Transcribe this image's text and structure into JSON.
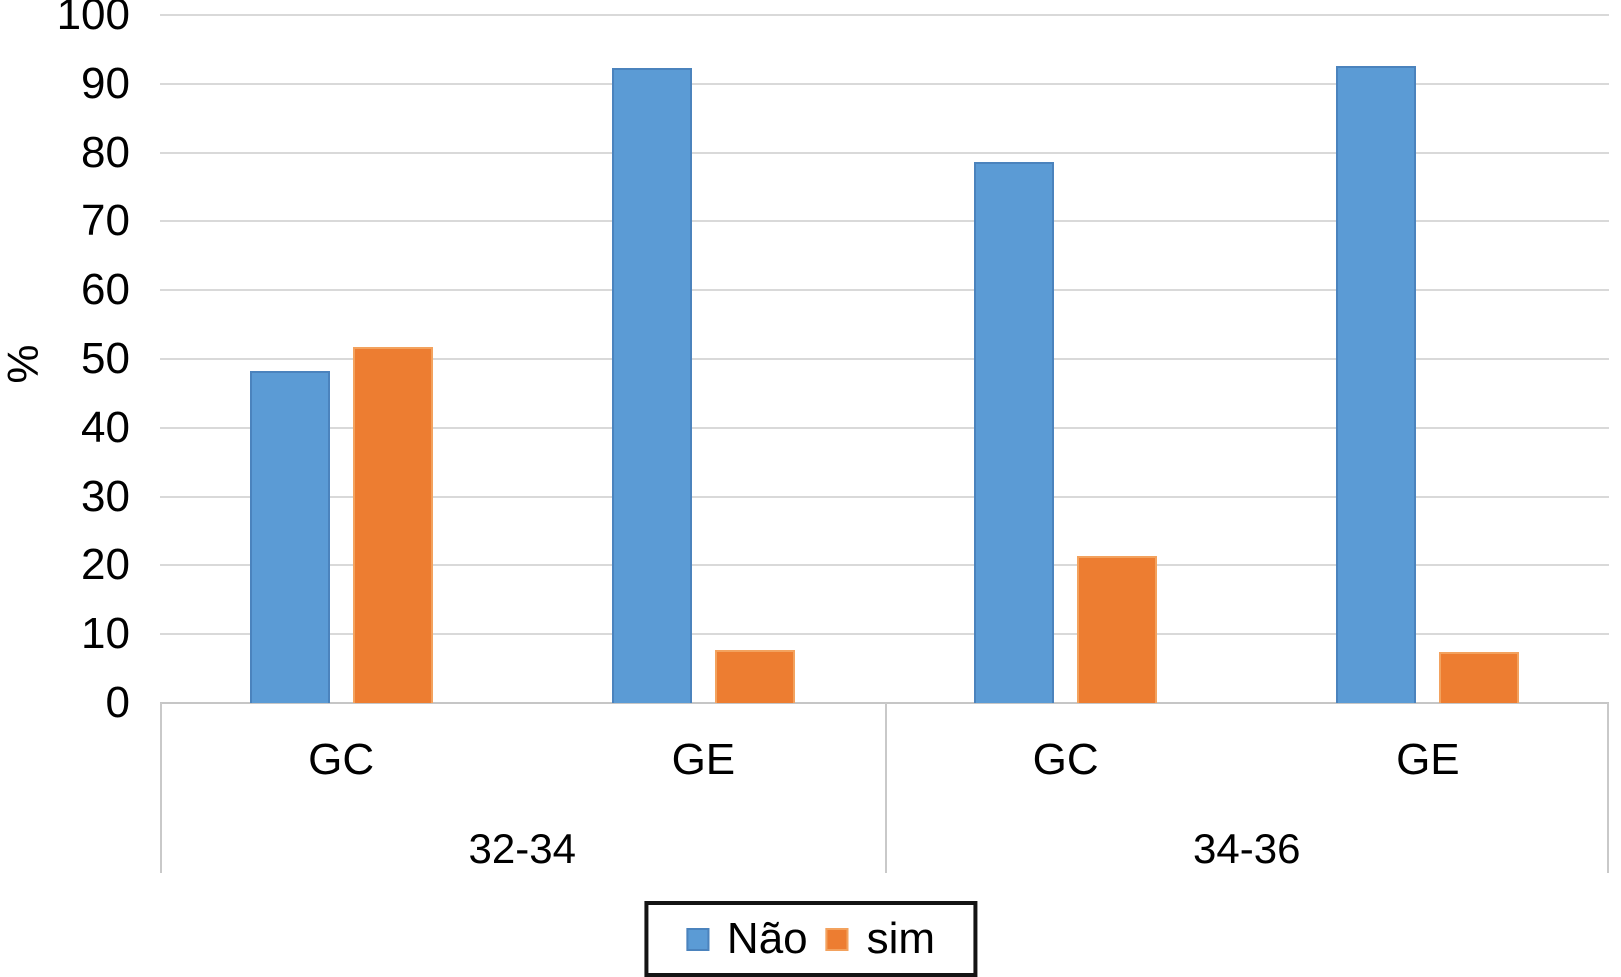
{
  "chart_data": {
    "type": "bar",
    "title": "",
    "ylabel": "%",
    "ylim": [
      0,
      100
    ],
    "ytick_step": 10,
    "yticks": [
      0,
      10,
      20,
      30,
      40,
      50,
      60,
      70,
      80,
      90,
      100
    ],
    "grid": true,
    "legend_position": "bottom",
    "groups": [
      "32-34",
      "34-36"
    ],
    "slots": [
      {
        "category": "GC",
        "group": "32-34"
      },
      {
        "category": "GE",
        "group": "32-34"
      },
      {
        "category": "GC",
        "group": "34-36"
      },
      {
        "category": "GE",
        "group": "34-36"
      }
    ],
    "series": [
      {
        "name": "Não",
        "color": "#5B9BD5",
        "border_color": "#4b83bd",
        "values": [
          48.3,
          92.3,
          78.6,
          92.6
        ]
      },
      {
        "name": "sim",
        "color": "#ED7D31",
        "border_color": "#f3a25e",
        "values": [
          51.7,
          7.7,
          21.4,
          7.4
        ]
      }
    ],
    "colors": {
      "gridline": "#d9d9d9",
      "axis_line": "#c6c6c6",
      "category_line": "#c9c9c9",
      "text": "#000000",
      "legend_border": "#141414",
      "background": "#ffffff"
    }
  }
}
